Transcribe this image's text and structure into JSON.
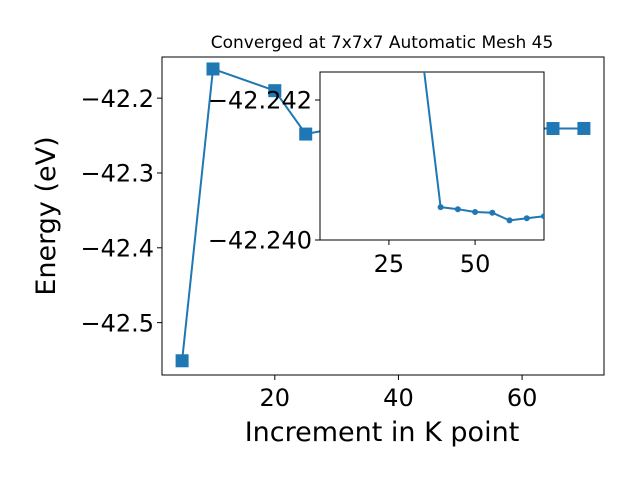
{
  "chart_data": [
    {
      "type": "line",
      "title": "Converged at 7x7x7 Automatic Mesh 45",
      "xlabel": "Increment in K point",
      "ylabel": "Energy (eV)",
      "xlim": [
        1.75,
        73.25
      ],
      "ylim": [
        -42.57,
        -42.145
      ],
      "xticks": [
        20,
        40,
        60
      ],
      "yticks": [
        -42.2,
        -42.3,
        -42.4,
        -42.5
      ],
      "ytick_labels": [
        "−42.2",
        "−42.3",
        "−42.4",
        "−42.5"
      ],
      "grid": false,
      "series": [
        {
          "marker": "square",
          "color": "#1f77b4",
          "x": [
            5,
            10,
            20,
            25,
            30,
            35,
            40,
            45,
            50,
            55,
            60,
            65,
            70
          ],
          "y": [
            -42.551,
            -42.161,
            -42.19,
            -42.248,
            -42.24,
            -42.24,
            -42.24,
            -42.2403,
            -42.2404,
            -42.2405,
            -42.2405,
            -42.2406,
            -42.2405
          ]
        }
      ]
    },
    {
      "type": "line",
      "title": "",
      "xlabel": "",
      "ylabel": "",
      "xlim": [
        5,
        70
      ],
      "ylim": [
        -42.24,
        -42.2424
      ],
      "xticks": [
        25,
        50
      ],
      "yticks": [
        -42.242,
        -42.24
      ],
      "ytick_labels": [
        "−42.242",
        "−42.240"
      ],
      "grid": false,
      "series": [
        {
          "marker": "circle",
          "color": "#1f77b4",
          "x": [
            35,
            40,
            45,
            50,
            55,
            60,
            65,
            70
          ],
          "y": [
            -42.2425,
            -42.24047,
            -42.24044,
            -42.2404,
            -42.24039,
            -42.24028,
            -42.24031,
            -42.24034
          ]
        }
      ]
    }
  ]
}
